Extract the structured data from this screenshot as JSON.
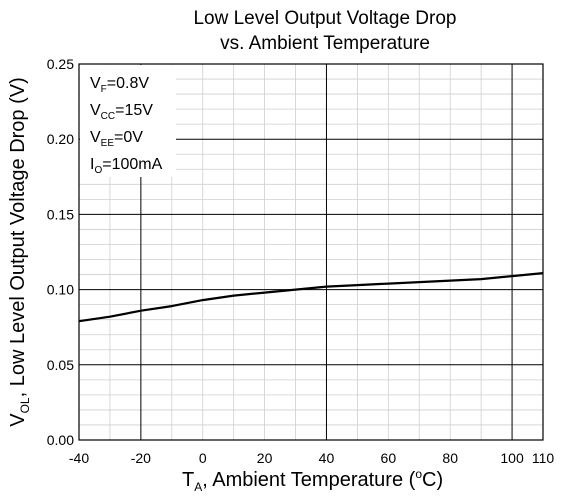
{
  "chart_data": {
    "type": "line",
    "title_line1": "Low Level Output Voltage Drop",
    "title_line2": "vs. Ambient Temperature",
    "xlabel": {
      "prefix": "T",
      "sub": "A",
      "mid": ", Ambient Temperature (",
      "sup": "o",
      "suffix": "C)"
    },
    "ylabel": {
      "prefix": "V",
      "sub": "OL",
      "suffix": ", Low Level Output Voltage Drop (V)"
    },
    "xlim": [
      -40,
      110
    ],
    "ylim": [
      0,
      0.25
    ],
    "x_ticks": [
      "-40",
      "-20",
      "0",
      "20",
      "40",
      "60",
      "80",
      "100",
      "110"
    ],
    "x_tick_values": [
      -40,
      -20,
      0,
      20,
      40,
      60,
      80,
      100,
      110
    ],
    "y_ticks": [
      "0.00",
      "0.05",
      "0.10",
      "0.15",
      "0.20",
      "0.25"
    ],
    "y_tick_values": [
      0,
      0.05,
      0.1,
      0.15,
      0.2,
      0.25
    ],
    "major_grid_x": [
      -40,
      -20,
      40,
      100,
      110
    ],
    "major_grid_y": [
      0,
      0.05,
      0.1,
      0.15,
      0.2,
      0.25
    ],
    "minor_grid_x": [
      -30,
      -10,
      0,
      10,
      20,
      30,
      50,
      60,
      70,
      80,
      90
    ],
    "minor_grid_y": [
      0.01,
      0.02,
      0.03,
      0.04,
      0.06,
      0.07,
      0.08,
      0.09,
      0.11,
      0.12,
      0.13,
      0.14,
      0.16,
      0.17,
      0.18,
      0.19,
      0.21,
      0.22,
      0.23,
      0.24
    ],
    "grid": true,
    "series": [
      {
        "x": [
          -40,
          -30,
          -20,
          -10,
          0,
          10,
          20,
          30,
          40,
          50,
          60,
          70,
          80,
          90,
          100,
          110
        ],
        "y": [
          0.079,
          0.082,
          0.086,
          0.089,
          0.093,
          0.096,
          0.098,
          0.1,
          0.102,
          0.103,
          0.104,
          0.105,
          0.106,
          0.107,
          0.109,
          0.111
        ]
      }
    ],
    "annotations": [
      {
        "prefix": "V",
        "sub": "F",
        "value": "=0.8V"
      },
      {
        "prefix": "V",
        "sub": "CC",
        "value": "=15V"
      },
      {
        "prefix": "V",
        "sub": "EE",
        "value": "=0V"
      },
      {
        "prefix": "I",
        "sub": "O",
        "value": "=100mA"
      }
    ]
  }
}
